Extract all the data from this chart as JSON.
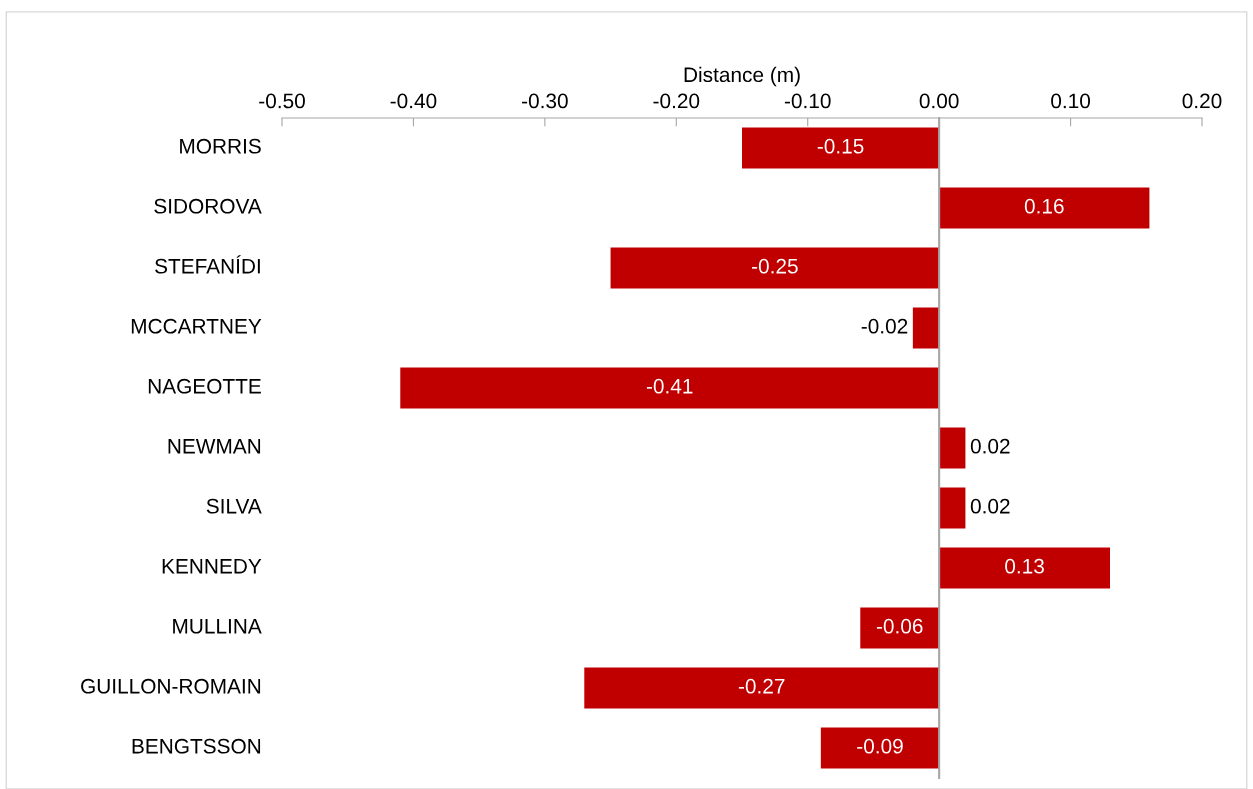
{
  "chart_data": {
    "type": "bar",
    "orientation": "horizontal",
    "xlabel": "Distance (m)",
    "categories": [
      "MORRIS",
      "SIDOROVA",
      "STEFANÍDI",
      "MCCARTNEY",
      "NAGEOTTE",
      "NEWMAN",
      "SILVA",
      "KENNEDY",
      "MULLINA",
      "GUILLON-ROMAIN",
      "BENGTSSON"
    ],
    "values": [
      -0.15,
      0.16,
      -0.25,
      -0.02,
      -0.41,
      0.02,
      0.02,
      0.13,
      -0.06,
      -0.27,
      -0.09
    ],
    "color": "#c00000",
    "xlim": [
      -0.5,
      0.2
    ],
    "xticks": [
      {
        "value": -0.5,
        "label": "-0.50"
      },
      {
        "value": -0.4,
        "label": "-0.40"
      },
      {
        "value": -0.3,
        "label": "-0.30"
      },
      {
        "value": -0.2,
        "label": "-0.20"
      },
      {
        "value": -0.1,
        "label": "-0.10"
      },
      {
        "value": 0,
        "label": "0.00"
      },
      {
        "value": 0.1,
        "label": "0.10"
      },
      {
        "value": 0.2,
        "label": "0.20"
      }
    ],
    "data_labels": true,
    "legend": false
  }
}
